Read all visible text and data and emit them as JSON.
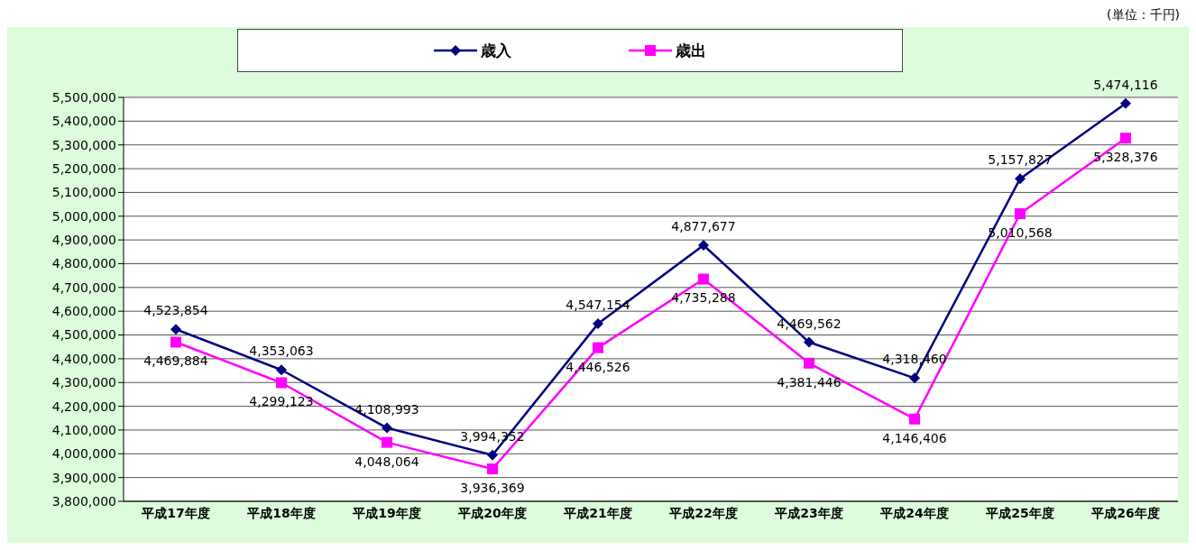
{
  "chart_data": {
    "type": "line",
    "categories": [
      "平成17年度",
      "平成18年度",
      "平成19年度",
      "平成20年度",
      "平成21年度",
      "平成22年度",
      "平成23年度",
      "平成24年度",
      "平成25年度",
      "平成26年度"
    ],
    "series": [
      {
        "name": "歳入",
        "color": "#000080",
        "marker": "diamond",
        "values": [
          4523854,
          4353063,
          4108993,
          3994352,
          4547154,
          4877677,
          4469562,
          4318460,
          5157827,
          5474116
        ],
        "value_labels": [
          "4,523,854",
          "4,353,063",
          "4,108,993",
          "3,994,352",
          "4,547,154",
          "4,877,677",
          "4,469,562",
          "4,318,460",
          "5,157,827",
          "5,474,116"
        ]
      },
      {
        "name": "歳出",
        "color": "#ff00ff",
        "marker": "square",
        "values": [
          4469884,
          4299123,
          4048064,
          3936369,
          4446526,
          4735288,
          4381446,
          4146406,
          5010568,
          5328376
        ],
        "value_labels": [
          "4,469,884",
          "4,299,123",
          "4,048,064",
          "3,936,369",
          "4,446,526",
          "4,735,288",
          "4,381,446",
          "4,146,406",
          "5,010,568",
          "5,328,376"
        ]
      }
    ],
    "ylim": [
      3800000,
      5500000
    ],
    "yticks": [
      {
        "value": 3800000,
        "label": "3,800,000"
      },
      {
        "value": 3900000,
        "label": "3,900,000"
      },
      {
        "value": 4000000,
        "label": "4,000,000"
      },
      {
        "value": 4100000,
        "label": "4,100,000"
      },
      {
        "value": 4200000,
        "label": "4,200,000"
      },
      {
        "value": 4300000,
        "label": "4,300,000"
      },
      {
        "value": 4400000,
        "label": "4,400,000"
      },
      {
        "value": 4500000,
        "label": "4,500,000"
      },
      {
        "value": 4600000,
        "label": "4,600,000"
      },
      {
        "value": 4700000,
        "label": "4,700,000"
      },
      {
        "value": 4800000,
        "label": "4,800,000"
      },
      {
        "value": 4900000,
        "label": "4,900,000"
      },
      {
        "value": 5000000,
        "label": "5,000,000"
      },
      {
        "value": 5100000,
        "label": "5,100,000"
      },
      {
        "value": 5200000,
        "label": "5,200,000"
      },
      {
        "value": 5300000,
        "label": "5,300,000"
      },
      {
        "value": 5400000,
        "label": "5,400,000"
      },
      {
        "value": 5500000,
        "label": "5,500,000"
      }
    ],
    "grid": "y",
    "legend": "top",
    "line_style": "solid",
    "annotations": [
      "(単位：千円)"
    ]
  }
}
